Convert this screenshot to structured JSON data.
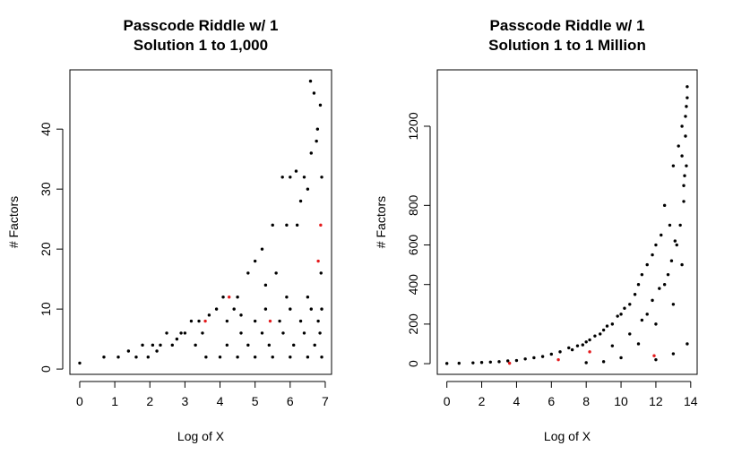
{
  "chart_data": [
    {
      "type": "scatter",
      "title": [
        "Passcode Riddle w/ 1",
        "Solution 1 to 1,000"
      ],
      "x_label": "Log of X",
      "y_label": "# Factors",
      "xlim": [
        -0.28,
        7.18
      ],
      "ylim": [
        -0.88,
        49.88
      ],
      "xticks": [
        0,
        1,
        2,
        3,
        4,
        5,
        6,
        7
      ],
      "yticks": [
        0,
        10,
        20,
        30,
        40
      ],
      "series": [
        {
          "color": "#000000",
          "x": [
            0,
            0.69,
            1.1,
            1.39,
            1.61,
            1.79,
            1.95,
            2.08,
            2.2,
            2.3,
            2.48,
            2.64,
            2.77,
            2.89,
            3.0,
            3.18,
            3.3,
            3.4,
            3.5,
            3.69,
            3.9,
            4.09,
            4.2,
            4.4,
            4.5,
            4.6,
            4.8,
            5.0,
            5.2,
            5.3,
            5.5,
            5.6,
            5.78,
            5.9,
            6.0,
            6.17,
            6.2,
            6.3,
            6.4,
            6.5,
            6.58,
            6.6,
            6.68,
            6.75,
            6.78,
            6.86,
            6.9,
            3.6,
            4.0,
            4.5,
            5.0,
            5.5,
            6.0,
            6.5,
            6.9,
            4.2,
            4.8,
            5.4,
            6.1,
            6.7,
            4.6,
            5.2,
            5.8,
            6.4,
            6.85,
            5.0,
            5.7,
            6.3,
            6.8,
            5.3,
            6.0,
            6.6,
            6.9,
            5.9,
            6.5,
            6.88
          ],
          "values": [
            1,
            2,
            2,
            3,
            2,
            4,
            2,
            4,
            3,
            4,
            6,
            4,
            5,
            6,
            6,
            8,
            4,
            8,
            6,
            9,
            10,
            12,
            8,
            10,
            12,
            9,
            16,
            18,
            20,
            14,
            24,
            16,
            32,
            24,
            32,
            33,
            24,
            28,
            32,
            30,
            48,
            36,
            46,
            38,
            40,
            44,
            32,
            2,
            2,
            2,
            2,
            2,
            2,
            2,
            2,
            4,
            4,
            4,
            4,
            4,
            6,
            6,
            6,
            6,
            6,
            8,
            8,
            8,
            8,
            10,
            10,
            10,
            10,
            12,
            12,
            16
          ]
        },
        {
          "color": "#e41a1c",
          "x": [
            3.58,
            4.26,
            5.43,
            6.8,
            6.87
          ],
          "values": [
            8,
            12,
            8,
            18,
            24
          ]
        }
      ]
    },
    {
      "type": "scatter",
      "title": [
        "Passcode Riddle w/ 1",
        "Solution 1 to 1 Million"
      ],
      "x_label": "Log of X",
      "y_label": "# Factors",
      "xlim": [
        -0.55,
        14.37
      ],
      "ylim": [
        -54,
        1485
      ],
      "xticks": [
        0,
        2,
        4,
        6,
        8,
        10,
        12,
        14
      ],
      "yticks": [
        0,
        200,
        400,
        600,
        800,
        1200
      ],
      "series": [
        {
          "color": "#000000",
          "x": [
            0,
            0.7,
            1.5,
            2,
            2.5,
            3,
            3.5,
            4,
            4.5,
            5,
            5.5,
            6,
            6.5,
            7,
            7.5,
            8,
            8.5,
            9,
            9.5,
            10,
            10.5,
            11,
            11.5,
            12,
            12.5,
            13,
            13.5,
            13.8,
            13.7,
            13.3,
            12.8,
            12.3,
            11.8,
            11.2,
            10.8,
            10.2,
            9.8,
            9.2,
            8.8,
            8.2,
            7.8,
            7.2,
            11,
            12,
            13,
            13.5,
            13.8,
            13,
            12,
            10,
            9,
            8,
            12.5,
            13.2,
            13.6,
            11.5,
            12.7,
            13.4,
            13.75,
            10.5,
            11.8,
            12.9,
            13.6,
            9.5,
            11.2,
            12.2,
            13.1,
            13.7,
            13.5,
            13.65,
            13.75,
            13.8
          ],
          "values": [
            1,
            2,
            4,
            6,
            8,
            10,
            14,
            16,
            24,
            30,
            36,
            48,
            60,
            80,
            90,
            110,
            140,
            170,
            200,
            250,
            300,
            400,
            500,
            600,
            800,
            1000,
            1200,
            1344,
            1250,
            1100,
            700,
            650,
            550,
            450,
            350,
            280,
            240,
            190,
            150,
            120,
            95,
            70,
            100,
            200,
            300,
            500,
            100,
            50,
            20,
            30,
            10,
            5,
            400,
            600,
            900,
            250,
            450,
            700,
            1000,
            150,
            320,
            520,
            820,
            90,
            220,
            380,
            620,
            1150,
            1050,
            950,
            1300,
            1400
          ]
        },
        {
          "color": "#e41a1c",
          "x": [
            3.6,
            6.4,
            8.2,
            11.9
          ],
          "values": [
            2,
            20,
            60,
            40
          ]
        }
      ]
    }
  ]
}
